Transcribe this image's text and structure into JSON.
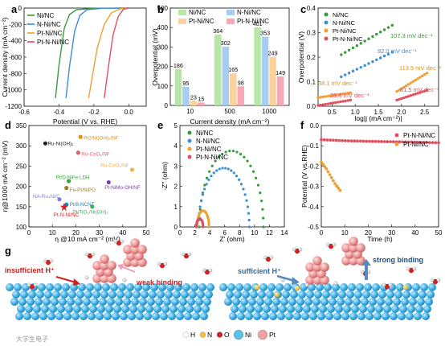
{
  "colors": {
    "Ni/NC": "#3a9a3a",
    "N-Ni/NC": "#3a8fd8",
    "Pt-Ni/NC": "#f0a030",
    "Pt-N-Ni/NC": "#e05060"
  },
  "panel_labels": [
    "a",
    "b",
    "c",
    "d",
    "e",
    "f",
    "g"
  ],
  "chart_data": [
    {
      "id": "a",
      "type": "line",
      "xlabel": "Potential (V vs. RHE)",
      "ylabel": "Current density (mA cm⁻²)",
      "xlim": [
        -0.6,
        0.1
      ],
      "ylim": [
        -1200,
        0
      ],
      "xticks": [
        "-0.6",
        "-0.4",
        "-0.2",
        "0.0"
      ],
      "yticks": [
        "0",
        "-200",
        "-400",
        "-600",
        "-800",
        "-1000",
        "-1200"
      ],
      "series": [
        {
          "name": "Ni/NC",
          "x": [
            0.0,
            -0.2,
            -0.3,
            -0.34,
            -0.37,
            -0.4,
            -0.42
          ],
          "y": [
            0,
            -3,
            -20,
            -80,
            -250,
            -700,
            -1100
          ]
        },
        {
          "name": "N-Ni/NC",
          "x": [
            0.0,
            -0.15,
            -0.24,
            -0.28,
            -0.31,
            -0.34,
            -0.36
          ],
          "y": [
            0,
            -3,
            -20,
            -90,
            -280,
            -720,
            -1100
          ]
        },
        {
          "name": "Pt-Ni/NC",
          "x": [
            0.0,
            -0.05,
            -0.1,
            -0.14,
            -0.18,
            -0.21,
            -0.23
          ],
          "y": [
            0,
            -10,
            -60,
            -200,
            -480,
            -850,
            -1100
          ]
        },
        {
          "name": "Pt-N-Ni/NC",
          "x": [
            0.0,
            -0.03,
            -0.06,
            -0.09,
            -0.11,
            -0.13,
            -0.14
          ],
          "y": [
            0,
            -15,
            -100,
            -330,
            -620,
            -930,
            -1100
          ]
        }
      ],
      "legend": "top-left"
    },
    {
      "id": "b",
      "type": "bar",
      "xlabel": "Current density (mA cm⁻²)",
      "ylabel": "Overpotential (mV)",
      "categories": [
        "10",
        "500",
        "1000"
      ],
      "ylim": [
        0,
        500
      ],
      "yticks": [
        "0",
        "100",
        "200",
        "300",
        "400",
        "500"
      ],
      "series": [
        {
          "name": "Ni/NC",
          "values": [
            186,
            364,
            401
          ]
        },
        {
          "name": "N-Ni/NC",
          "values": [
            95,
            302,
            353
          ]
        },
        {
          "name": "Pt-Ni/NC",
          "values": [
            23,
            165,
            249
          ]
        },
        {
          "name": "Pt-N-Ni/NC",
          "values": [
            15,
            98,
            149
          ]
        }
      ],
      "bar_colors": [
        "#b8e6a8",
        "#a8cdf0",
        "#fcd29a",
        "#f7a8b4"
      ],
      "legend": "top"
    },
    {
      "id": "c",
      "type": "line",
      "xlabel": "log|j (mA cm⁻²)|",
      "ylabel": "Overpotential (V)",
      "xlim": [
        0.2,
        2.8
      ],
      "ylim": [
        0,
        0.4
      ],
      "xticks": [
        "0.5",
        "1.0",
        "1.5",
        "2.0",
        "2.5"
      ],
      "yticks": [
        "0.0",
        "0.1",
        "0.2",
        "0.3",
        "0.4"
      ],
      "series": [
        {
          "name": "Ni/NC",
          "x": [
            0.7,
            1.8
          ],
          "y": [
            0.21,
            0.33
          ],
          "tafel": "107.3 mV dec⁻¹"
        },
        {
          "name": "N-Ni/NC",
          "x": [
            0.7,
            1.8
          ],
          "y": [
            0.12,
            0.22
          ],
          "tafel": "92.0 mV dec⁻¹"
        },
        {
          "name": "Pt-Ni/NC",
          "x": [
            1.9,
            2.55
          ],
          "y": [
            0.06,
            0.135
          ],
          "tafel": "113.5 mV dec⁻¹"
        },
        {
          "name": "Pt-N-Ni/NC",
          "x": [
            1.9,
            2.55
          ],
          "y": [
            0.025,
            0.065
          ],
          "tafel": "61.5 mV dec⁻¹"
        },
        {
          "name": "Pt-Ni/NC-low",
          "x": [
            0.2,
            0.9
          ],
          "y": [
            0.035,
            0.055
          ],
          "tafel": "38.1 mV dec⁻¹"
        },
        {
          "name": "Pt-N-Ni/NC-low",
          "x": [
            0.2,
            0.9
          ],
          "y": [
            0.003,
            0.025
          ],
          "tafel": "28.8 mV dec⁻¹"
        }
      ],
      "legend": "top-left"
    },
    {
      "id": "d",
      "type": "scatter",
      "xlabel": "η @10 mA cm⁻² (mV)",
      "ylabel": "η@1000 mA cm⁻² (mV)",
      "xlim": [
        0,
        50
      ],
      "ylim": [
        100,
        350
      ],
      "xticks": [
        "0",
        "10",
        "20",
        "30",
        "40",
        "50"
      ],
      "yticks": [
        "100",
        "150",
        "200",
        "250",
        "300",
        "350"
      ],
      "points": [
        {
          "label": "Ru-Ni(OH)₂",
          "x": 7,
          "y": 306,
          "color": "#222222"
        },
        {
          "label": "Pt2/Ni(OH)₂/NF",
          "x": 22,
          "y": 322,
          "color": "#e0901c"
        },
        {
          "label": "Ru-CoOₓ/NF",
          "x": 21,
          "y": 283,
          "color": "#e06070"
        },
        {
          "label": "Ru-CoOₓ/NF",
          "x": 44,
          "y": 241,
          "color": "#f0b050"
        },
        {
          "label": "Pt/D-NiFe LDH",
          "x": 17,
          "y": 213,
          "color": "#3aa03a"
        },
        {
          "label": "Pt-NiMo-OH/NF",
          "x": 34,
          "y": 210,
          "color": "#7a40b0"
        },
        {
          "label": "Fe-Pt/NiPO",
          "x": 16,
          "y": 196,
          "color": "#a08020"
        },
        {
          "label": "NA-Ru₄Ni/C",
          "x": 13,
          "y": 168,
          "color": "#8080e0"
        },
        {
          "label": "Pt/8-NCNT",
          "x": 16,
          "y": 155,
          "color": "#2080c0"
        },
        {
          "label": "Pt/TiO₂/Ni(OH)₂",
          "x": 27,
          "y": 150,
          "color": "#40b060"
        },
        {
          "label": "Pt-N-Ni/NC",
          "x": 15,
          "y": 149,
          "color": "#e02020"
        }
      ]
    },
    {
      "id": "e",
      "type": "scatter",
      "xlabel": "Z' (ohm)",
      "ylabel": "-Z'' (ohm)",
      "xlim": [
        0,
        14
      ],
      "ylim": [
        0,
        5
      ],
      "xticks": [
        "0",
        "2",
        "4",
        "6",
        "8",
        "10",
        "12",
        "14"
      ],
      "yticks": [
        "0",
        "1",
        "2",
        "3",
        "4",
        "5"
      ],
      "series": [
        {
          "name": "Ni/NC",
          "arc": [
            2.6,
            11.2,
            3.75
          ]
        },
        {
          "name": "N-Ni/NC",
          "arc": [
            2.5,
            9.3,
            2.9
          ]
        },
        {
          "name": "Pt-Ni/NC",
          "arc": [
            2.3,
            3.9,
            0.8
          ]
        },
        {
          "name": "Pt-N-Ni/NC",
          "arc": [
            2.2,
            3.1,
            0.4
          ]
        }
      ],
      "legend": "top-left"
    },
    {
      "id": "f",
      "type": "line",
      "xlabel": "Time (h)",
      "ylabel": "Potential (V vs.RHE)",
      "xlim": [
        0,
        50
      ],
      "ylim": [
        -0.5,
        0
      ],
      "xticks": [
        "0",
        "10",
        "20",
        "30",
        "40",
        "50"
      ],
      "yticks": [
        "0.0",
        "-0.1",
        "-0.2",
        "-0.3",
        "-0.4",
        "-0.5"
      ],
      "series": [
        {
          "name": "Pt-N-Ni/NC",
          "x": [
            0,
            10,
            20,
            30,
            40,
            50
          ],
          "y": [
            -0.07,
            -0.075,
            -0.078,
            -0.08,
            -0.082,
            -0.085
          ]
        },
        {
          "name": "Pt-Ni/NC",
          "x": [
            0,
            2,
            4,
            6,
            8
          ],
          "y": [
            -0.18,
            -0.21,
            -0.25,
            -0.29,
            -0.32
          ]
        }
      ],
      "legend": "top-right"
    }
  ],
  "schematic": {
    "left_text1": "insufficient H⁺",
    "left_text2": "weak  binding",
    "right_text1": "sufficient H⁺",
    "right_text2": "strong binding",
    "legend_items": [
      {
        "label": "H",
        "color": "#ffffff"
      },
      {
        "label": "N",
        "color": "#f0c040"
      },
      {
        "label": "O",
        "color": "#d02020"
      },
      {
        "label": "Ni",
        "color": "#5ac0e8"
      },
      {
        "label": "Pt",
        "color": "#f0a0a0"
      }
    ]
  },
  "watermark": "大学生电子"
}
